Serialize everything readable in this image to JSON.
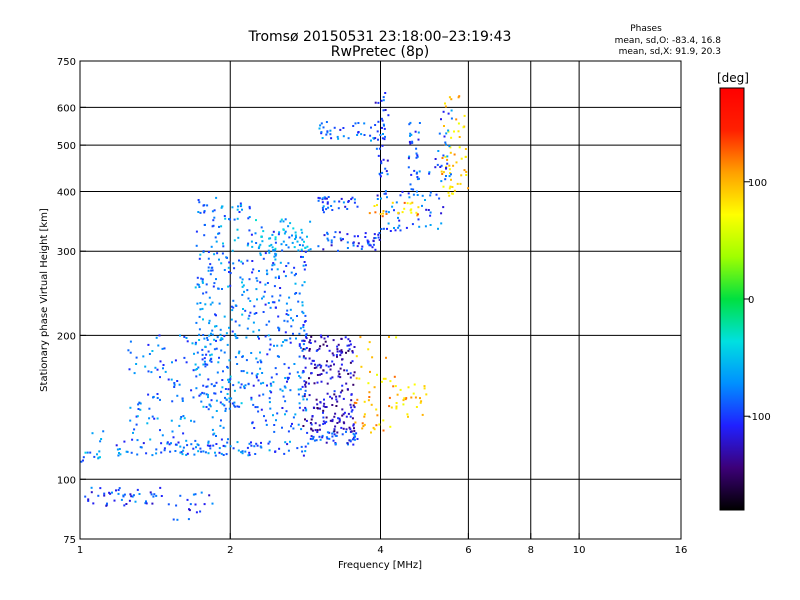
{
  "chart_data": {
    "type": "scatter",
    "title": "Tromsø 20150531 23:18:00–23:19:43",
    "subtitle": "RwPretec (8p)",
    "xlabel": "Frequency [MHz]",
    "ylabel": "Stationary phase Virtual Height [km]",
    "x_scale": "log",
    "y_scale": "log",
    "xlim": [
      1,
      16
    ],
    "ylim": [
      75,
      750
    ],
    "x_ticks": [
      1,
      2,
      4,
      6,
      8,
      10,
      16
    ],
    "y_ticks": [
      75,
      100,
      200,
      300,
      400,
      500,
      600,
      750
    ],
    "x_gridlines": [
      2,
      4,
      6,
      8,
      10
    ],
    "y_gridlines": [
      100,
      200,
      300,
      400,
      500,
      600
    ],
    "grid": true,
    "stats": {
      "heading": "Phases",
      "line1": "mean, sd,O:  -83.4, 16.8",
      "line2": "mean, sd,X:   91.9, 20.3"
    },
    "colorbar": {
      "label": "[deg]",
      "range": [
        -180,
        180
      ],
      "ticks": [
        100,
        0,
        -100
      ],
      "colors": [
        "#000000",
        "#3c0078",
        "#2020ff",
        "#0090ff",
        "#00e0e0",
        "#00e040",
        "#a0ff00",
        "#ffff00",
        "#ffa000",
        "#ff2000",
        "#ff0000"
      ],
      "position": "right"
    },
    "clusters": [
      {
        "f": [
          1.0,
          1.45
        ],
        "h": [
          88,
          96
        ],
        "phase": -95,
        "n": 45
      },
      {
        "f": [
          1.45,
          1.85
        ],
        "h": [
          82,
          94
        ],
        "phase": -95,
        "n": 20
      },
      {
        "f": [
          1.0,
          1.12
        ],
        "h": [
          108,
          126
        ],
        "phase": -70,
        "n": 16
      },
      {
        "f": [
          1.18,
          2.9
        ],
        "h": [
          112,
          120
        ],
        "phase": -85,
        "n": 110
      },
      {
        "f": [
          2.9,
          3.6
        ],
        "h": [
          118,
          126
        ],
        "phase": -100,
        "n": 45
      },
      {
        "f": [
          1.25,
          2.0
        ],
        "h": [
          120,
          200
        ],
        "phase": -80,
        "n": 150
      },
      {
        "f": [
          1.7,
          2.2
        ],
        "h": [
          140,
          390
        ],
        "phase": -75,
        "n": 260
      },
      {
        "f": [
          2.2,
          2.85
        ],
        "h": [
          125,
          330
        ],
        "phase": -85,
        "n": 260
      },
      {
        "f": [
          2.25,
          2.9
        ],
        "h": [
          300,
          350
        ],
        "phase": -60,
        "n": 50
      },
      {
        "f": [
          2.8,
          3.55
        ],
        "h": [
          125,
          200
        ],
        "phase": -125,
        "n": 220
      },
      {
        "f": [
          3.55,
          4.3
        ],
        "h": [
          125,
          200
        ],
        "phase": 95,
        "n": 50
      },
      {
        "f": [
          4.3,
          5.0
        ],
        "h": [
          135,
          158
        ],
        "phase": 95,
        "n": 25
      },
      {
        "f": [
          3.0,
          4.0
        ],
        "h": [
          300,
          330
        ],
        "phase": -105,
        "n": 50
      },
      {
        "f": [
          4.0,
          5.4
        ],
        "h": [
          330,
          400
        ],
        "phase": -90,
        "n": 45
      },
      {
        "f": [
          3.7,
          4.8
        ],
        "h": [
          355,
          380
        ],
        "phase": 100,
        "n": 25
      },
      {
        "f": [
          3.0,
          3.6
        ],
        "h": [
          360,
          390
        ],
        "phase": -95,
        "n": 35
      },
      {
        "f": [
          3.0,
          4.1
        ],
        "h": [
          510,
          560
        ],
        "phase": -85,
        "n": 45
      },
      {
        "f": [
          3.9,
          4.15
        ],
        "h": [
          380,
          650
        ],
        "phase": -100,
        "n": 35
      },
      {
        "f": [
          4.55,
          4.8
        ],
        "h": [
          380,
          560
        ],
        "phase": -90,
        "n": 35
      },
      {
        "f": [
          5.3,
          6.0
        ],
        "h": [
          390,
          650
        ],
        "phase": 95,
        "n": 55
      },
      {
        "f": [
          5.0,
          5.6
        ],
        "h": [
          420,
          600
        ],
        "phase": -90,
        "n": 30
      }
    ]
  }
}
